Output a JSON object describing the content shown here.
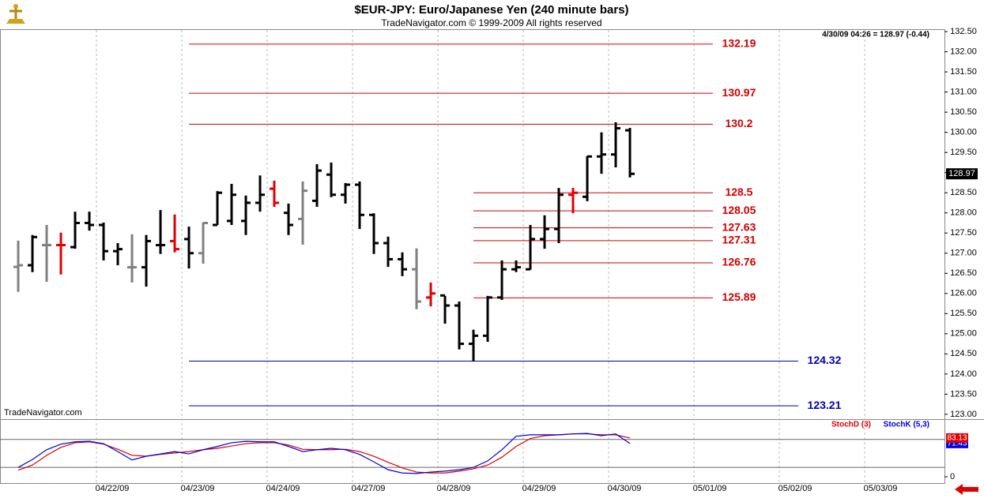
{
  "chart_data": [
    {
      "type": "ohlc",
      "title": "$EUR-JPY:  Euro/Japanese Yen  (240 minute bars)",
      "subtitle": "TradeNavigator.com © 1999-2009 All rights reserved",
      "annotation": "4/30/09 04:26 = 128.97 (-0.44)",
      "watermark": "TradeNavigator.com",
      "x": [
        0,
        1,
        2,
        3,
        4,
        5,
        6,
        7,
        8,
        9,
        10,
        11,
        12,
        13,
        14,
        15,
        16,
        17,
        18,
        19,
        20,
        21,
        22,
        23,
        24,
        25,
        26,
        27,
        28,
        29,
        30,
        31,
        32,
        33,
        34,
        35,
        36,
        37,
        38,
        39,
        40,
        41,
        42,
        43
      ],
      "open": [
        126.66,
        126.7,
        127.2,
        127.2,
        127.15,
        127.75,
        127.7,
        127.05,
        126.65,
        126.65,
        127.2,
        127.3,
        127.35,
        127.0,
        127.7,
        127.8,
        127.8,
        128.25,
        128.6,
        128.0,
        127.85,
        128.3,
        128.95,
        128.45,
        128.7,
        127.95,
        127.25,
        126.85,
        126.6,
        125.9,
        125.95,
        125.7,
        124.75,
        124.95,
        125.9,
        126.6,
        126.6,
        127.35,
        127.6,
        128.45,
        128.4,
        129.4,
        129.45,
        130.05
      ],
      "high": [
        127.31,
        127.45,
        127.7,
        127.51,
        128.03,
        128.03,
        127.76,
        127.25,
        127.47,
        127.45,
        128.07,
        127.96,
        127.66,
        127.76,
        128.54,
        128.72,
        128.43,
        128.93,
        128.8,
        128.23,
        128.78,
        129.21,
        129.25,
        128.74,
        128.78,
        127.99,
        127.41,
        127.02,
        127.12,
        126.27,
        125.94,
        125.8,
        125.1,
        125.94,
        126.82,
        126.82,
        127.7,
        127.94,
        128.62,
        128.62,
        129.41,
        130.0,
        130.25,
        130.11
      ],
      "low": [
        126.04,
        126.53,
        126.29,
        126.47,
        127.11,
        127.56,
        126.82,
        126.7,
        126.27,
        126.17,
        126.98,
        127.02,
        126.62,
        126.74,
        127.7,
        127.7,
        127.45,
        128.03,
        128.15,
        127.45,
        127.21,
        128.15,
        128.39,
        128.23,
        127.6,
        126.98,
        126.66,
        126.43,
        125.61,
        125.68,
        125.25,
        124.61,
        124.31,
        124.8,
        125.84,
        126.53,
        126.59,
        127.11,
        127.25,
        127.99,
        128.29,
        128.97,
        129.13,
        128.88
      ],
      "close": [
        126.7,
        127.4,
        127.2,
        127.2,
        127.75,
        127.7,
        127.05,
        127.1,
        126.65,
        127.3,
        127.2,
        127.1,
        127.0,
        127.75,
        128.5,
        128.45,
        128.25,
        128.45,
        128.25,
        127.7,
        128.55,
        129.05,
        128.45,
        128.7,
        127.95,
        127.25,
        126.85,
        126.6,
        125.8,
        126.0,
        125.7,
        124.75,
        124.95,
        125.9,
        126.6,
        126.65,
        127.35,
        127.6,
        128.45,
        128.5,
        129.4,
        129.45,
        130.1,
        128.97
      ],
      "colors": [
        "#808080",
        "#000000",
        "#808080",
        "#e00000",
        "#000000",
        "#000000",
        "#000000",
        "#000000",
        "#808080",
        "#000000",
        "#000000",
        "#e00000",
        "#000000",
        "#808080",
        "#000000",
        "#000000",
        "#000000",
        "#000000",
        "#e00000",
        "#000000",
        "#808080",
        "#000000",
        "#000000",
        "#000000",
        "#000000",
        "#000000",
        "#000000",
        "#000000",
        "#808080",
        "#e00000",
        "#000000",
        "#000000",
        "#000000",
        "#000000",
        "#000000",
        "#000000",
        "#000000",
        "#000000",
        "#000000",
        "#e00000",
        "#000000",
        "#000000",
        "#000000",
        "#000000"
      ],
      "levels": [
        {
          "value": 132.19,
          "color": "#d00000",
          "x_start": 12,
          "x_end": 48.83
        },
        {
          "value": 130.97,
          "color": "#d00000",
          "x_start": 12,
          "x_end": 48.83
        },
        {
          "value": 130.2,
          "color": "#d00000",
          "x_start": 12,
          "x_end": 48.83
        },
        {
          "value": 128.5,
          "color": "#d00000",
          "x_start": 32,
          "x_end": 48.83
        },
        {
          "value": 128.05,
          "color": "#d00000",
          "x_start": 32,
          "x_end": 48.83
        },
        {
          "value": 127.63,
          "color": "#d00000",
          "x_start": 32,
          "x_end": 48.83
        },
        {
          "value": 127.31,
          "color": "#d00000",
          "x_start": 32,
          "x_end": 48.83
        },
        {
          "value": 126.76,
          "color": "#d00000",
          "x_start": 32,
          "x_end": 48.83
        },
        {
          "value": 125.89,
          "color": "#d00000",
          "x_start": 32,
          "x_end": 48.83
        },
        {
          "value": 124.32,
          "color": "#0000b0",
          "x_start": 12,
          "x_end": 54.83
        },
        {
          "value": 123.21,
          "color": "#0000b0",
          "x_start": 12,
          "x_end": 54.83
        }
      ],
      "xlim": [
        -1.28,
        65.11
      ],
      "xticks": [
        {
          "value": 5.5,
          "label": "04/22/09"
        },
        {
          "value": 11.5,
          "label": "04/23/09"
        },
        {
          "value": 17.5,
          "label": "04/24/09"
        },
        {
          "value": 23.5,
          "label": "04/27/09"
        },
        {
          "value": 29.5,
          "label": "04/28/09"
        },
        {
          "value": 35.5,
          "label": "04/29/09"
        },
        {
          "value": 41.5,
          "label": "04/30/09"
        },
        {
          "value": 47.5,
          "label": "05/01/09"
        },
        {
          "value": 53.5,
          "label": "05/02/09"
        },
        {
          "value": 59.5,
          "label": "05/03/09"
        }
      ],
      "ylim": [
        122.9,
        132.54
      ],
      "yticks": [
        {
          "value": 123,
          "label": "123.00"
        },
        {
          "value": 123.5,
          "label": "123.50"
        },
        {
          "value": 124,
          "label": "124.00"
        },
        {
          "value": 124.5,
          "label": "124.50"
        },
        {
          "value": 125,
          "label": "125.00"
        },
        {
          "value": 125.5,
          "label": "125.50"
        },
        {
          "value": 126,
          "label": "126.00"
        },
        {
          "value": 126.5,
          "label": "126.50"
        },
        {
          "value": 127,
          "label": "127.00"
        },
        {
          "value": 127.5,
          "label": "127.50"
        },
        {
          "value": 128,
          "label": "128.00"
        },
        {
          "value": 128.5,
          "label": "128.50"
        },
        {
          "value": 129,
          "label": "129.00"
        },
        {
          "value": 129.5,
          "label": "129.50"
        },
        {
          "value": 130,
          "label": "130.00"
        },
        {
          "value": 130.5,
          "label": "130.50"
        },
        {
          "value": 131,
          "label": "131.00"
        },
        {
          "value": 131.5,
          "label": "131.50"
        },
        {
          "value": 132,
          "label": "132.00"
        },
        {
          "value": 132.5,
          "label": "132.50"
        }
      ]
    },
    {
      "type": "line",
      "x": [
        0,
        1,
        2,
        3,
        4,
        5,
        6,
        7,
        8,
        9,
        10,
        11,
        12,
        13,
        14,
        15,
        16,
        17,
        18,
        19,
        20,
        21,
        22,
        23,
        24,
        25,
        26,
        27,
        28,
        29,
        30,
        31,
        32,
        33,
        34,
        35,
        36,
        37,
        38,
        39,
        40,
        41,
        42,
        43
      ],
      "series": [
        {
          "name": "StochD (3)",
          "color": "#e00000",
          "values": [
            14,
            25,
            46,
            63,
            73,
            75,
            70,
            59,
            46,
            44,
            48,
            51,
            54,
            58,
            61,
            66,
            71,
            73,
            73,
            68,
            59,
            58,
            58,
            59,
            54,
            44,
            31,
            19,
            10,
            8,
            8,
            12,
            17,
            25,
            42,
            65,
            82,
            88,
            90,
            92,
            92,
            90,
            90,
            83.13
          ]
        },
        {
          "name": "StochK (5,3)",
          "color": "#0000e0",
          "values": [
            20,
            37,
            58,
            70,
            75,
            76,
            71,
            54,
            36,
            44,
            49,
            54,
            49,
            58,
            65,
            73,
            76,
            75,
            75,
            65,
            54,
            58,
            61,
            58,
            48,
            32,
            15,
            8,
            7,
            10,
            12,
            15,
            20,
            34,
            58,
            87,
            90,
            90,
            90,
            92,
            93,
            88,
            92,
            71.43
          ]
        }
      ],
      "hlines": [
        20,
        80
      ],
      "xlim": [
        -1.28,
        65.11
      ],
      "ylim": [
        -13.6,
        120.3
      ],
      "yticks": [
        0
      ]
    }
  ]
}
